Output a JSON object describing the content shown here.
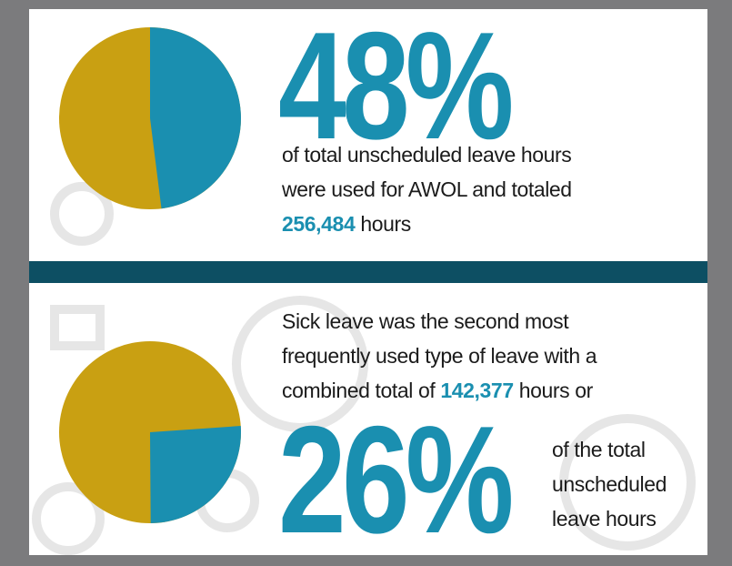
{
  "sections": [
    {
      "percent": {
        "value": 48,
        "label": "48%"
      },
      "text_lines": [
        "of total unscheduled leave hours",
        "were used for AWOL and totaled"
      ],
      "hours": "256,484",
      "hours_suffix": "hours"
    },
    {
      "text_lines": [
        "Sick leave was the second most",
        "frequently used type of leave with a"
      ],
      "line3_prefix": "combined total of",
      "hours": "142,377",
      "hours_suffix": "hours or",
      "percent": {
        "value": 26,
        "label": "26%"
      },
      "trailing_lines": [
        "of the total",
        "unscheduled",
        "leave hours"
      ]
    }
  ]
}
